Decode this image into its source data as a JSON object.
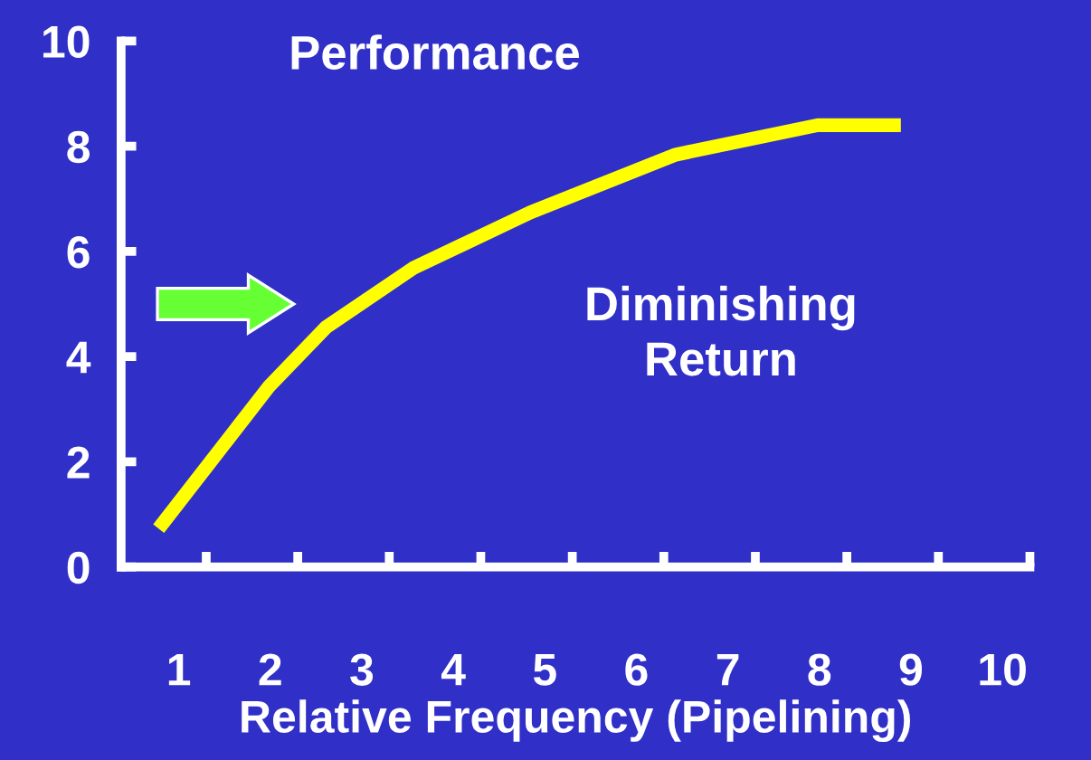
{
  "chart_data": {
    "type": "line",
    "ylabel": "Performance",
    "xlabel": "Relative Frequency (Pipelining)",
    "annotations": [
      "Diminishing\nReturn"
    ],
    "x": [
      0.78,
      1.99,
      2.61,
      3.56,
      4.84,
      6.43,
      7.98,
      8.89
    ],
    "series": [
      {
        "color": "#ffff00",
        "values": [
          0.73,
          3.44,
          4.56,
          5.68,
          6.74,
          7.84,
          8.4,
          8.4
        ]
      }
    ],
    "xlim": [
      0.37,
      10.3
    ],
    "ylim": [
      0,
      10
    ],
    "xticks": [
      1,
      2,
      3,
      4,
      5,
      6,
      7,
      8,
      9,
      10,
      {
        "value": 1.3,
        "label": null
      },
      {
        "value": 2.3,
        "label": null
      },
      {
        "value": 3.3,
        "label": null
      },
      {
        "value": 4.3,
        "label": null
      },
      {
        "value": 5.3,
        "label": null
      },
      {
        "value": 6.3,
        "label": null
      },
      {
        "value": 7.3,
        "label": null
      },
      {
        "value": 8.3,
        "label": null
      },
      {
        "value": 9.3,
        "label": null
      },
      {
        "value": 10.3,
        "label": null
      }
    ],
    "yticks": [
      0,
      2,
      4,
      6,
      8,
      10
    ],
    "grid": false,
    "marker": "none",
    "line_style": "solid"
  }
}
